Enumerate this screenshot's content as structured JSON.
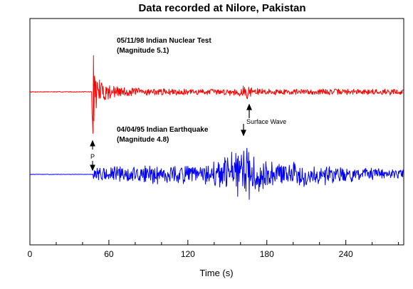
{
  "chart_data": {
    "type": "line",
    "title": "Data recorded at Nilore, Pakistan",
    "xlabel": "Time (s)",
    "ylabel": "",
    "xlim": [
      0,
      284
    ],
    "x_ticks": [
      0,
      60,
      120,
      180,
      240
    ],
    "x_tick_labels": [
      "0",
      "60",
      "120",
      "180",
      "240"
    ],
    "minor_tick_step": 20,
    "grid": false,
    "series": [
      {
        "name": "05/11/98 Indian Nuclear Test",
        "subtitle": "(Magnitude 5.1)",
        "color": "#ff0000",
        "p_arrival": 47,
        "surface_wave": 165,
        "peak_relative_amplitude": 1.0
      },
      {
        "name": "04/04/95 Indian Earthquake",
        "subtitle": "(Magnitude 4.8)",
        "color": "#0000ff",
        "p_arrival": 48,
        "surface_wave": 161,
        "peak_relative_amplitude": 0.95
      }
    ],
    "annotations": [
      {
        "text": "Surface Wave",
        "x": 165,
        "series": "05/11/98 Indian Nuclear Test"
      },
      {
        "text": "P",
        "x": 47,
        "series": "04/04/95 Indian Earthquake"
      }
    ]
  }
}
